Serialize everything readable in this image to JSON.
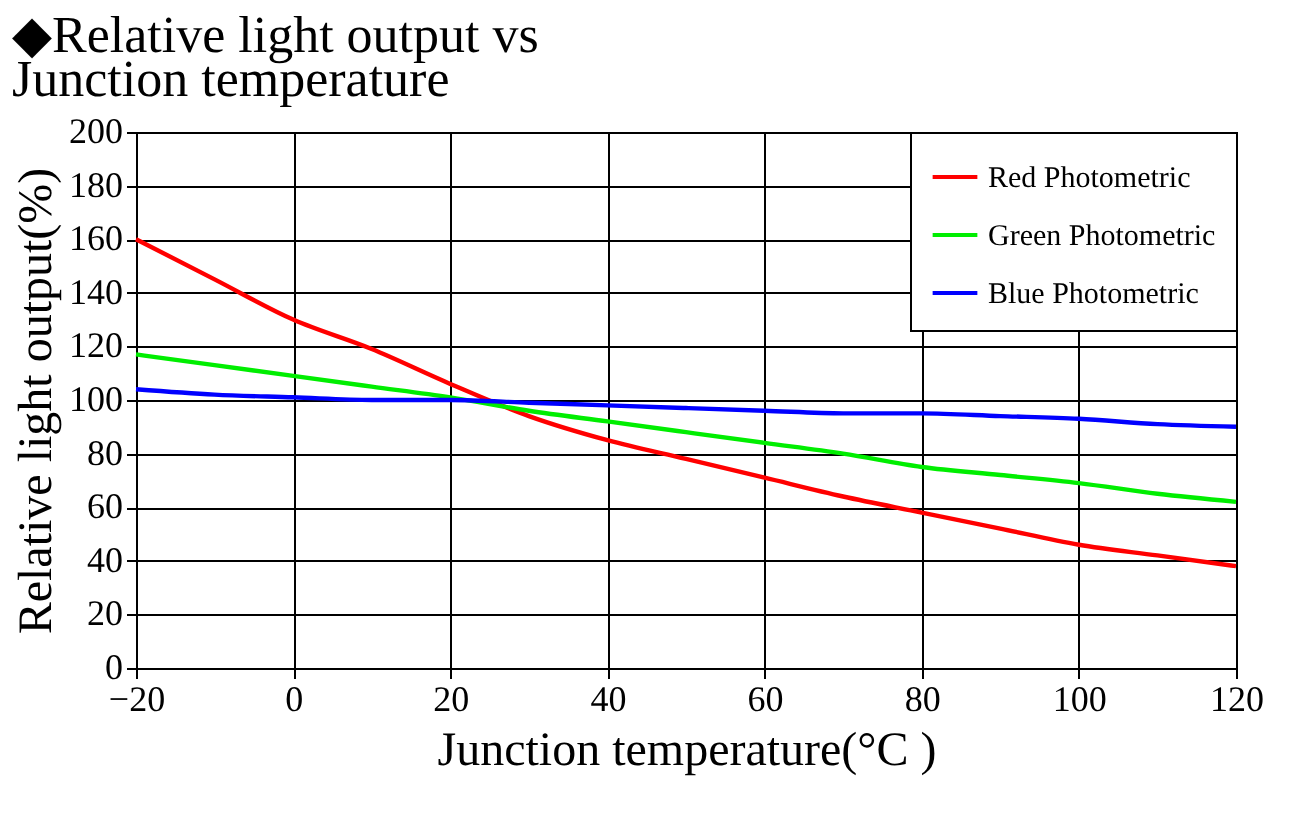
{
  "chart_data": {
    "type": "line",
    "title": "◆Relative light output vs\nJunction temperature",
    "xlabel": "Junction temperature(°C )",
    "ylabel": "Relative light output(%)",
    "x": [
      -20,
      -10,
      0,
      10,
      20,
      30,
      40,
      50,
      60,
      70,
      80,
      90,
      100,
      110,
      120
    ],
    "series": [
      {
        "name": "Red Photometric",
        "color": "#ff0000",
        "values": [
          160,
          145,
          130,
          119,
          106,
          94,
          85,
          78,
          71,
          64,
          58,
          52,
          46,
          42,
          38
        ]
      },
      {
        "name": "Green Photometric",
        "color": "#00ee00",
        "values": [
          117,
          113,
          109,
          105,
          101,
          96,
          92,
          88,
          84,
          80,
          75,
          72,
          69,
          65,
          62
        ]
      },
      {
        "name": "Blue Photometric",
        "color": "#0000ff",
        "values": [
          104,
          102,
          101,
          100,
          100,
          99,
          98,
          97,
          96,
          95,
          95,
          94,
          93,
          91,
          90
        ]
      }
    ],
    "xlim": [
      -20,
      120
    ],
    "xticks": [
      -20,
      0,
      20,
      40,
      60,
      80,
      100,
      120
    ],
    "ylim": [
      0,
      200
    ],
    "yticks": [
      0,
      20,
      40,
      60,
      80,
      100,
      120,
      140,
      160,
      180,
      200
    ],
    "grid": true,
    "legend": "top right",
    "marker": "none",
    "line_style": "solid"
  }
}
